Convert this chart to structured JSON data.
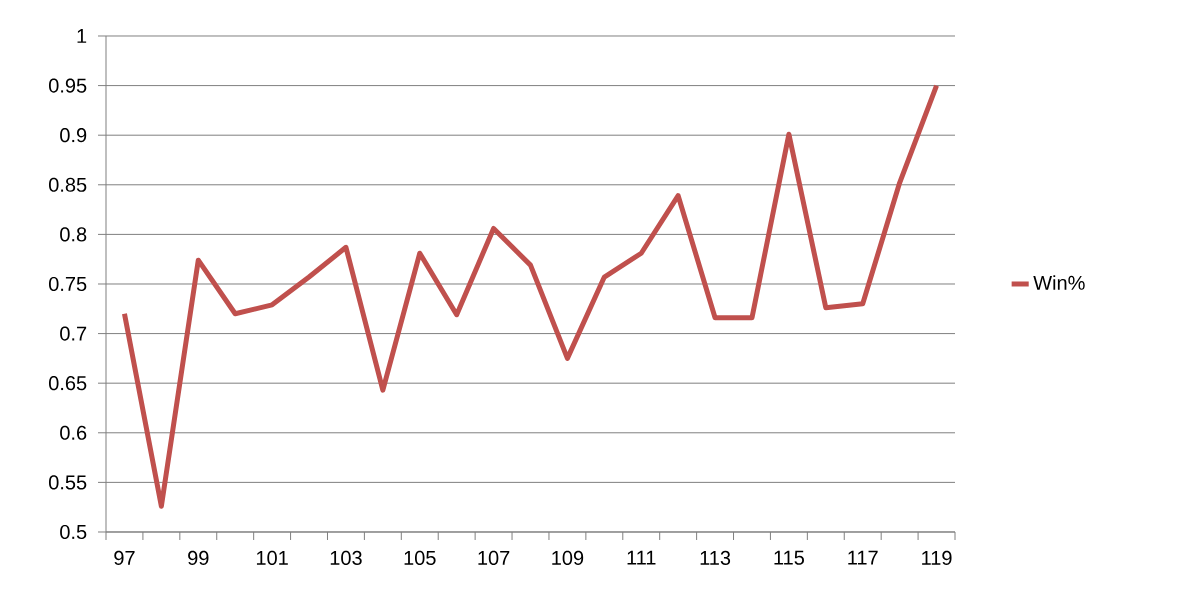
{
  "chart_data": {
    "type": "line",
    "categories": [
      "97",
      null,
      "99",
      null,
      "101",
      null,
      "103",
      null,
      "105",
      null,
      "107",
      null,
      "109",
      null,
      "111",
      null,
      "113",
      null,
      "115",
      null,
      "117",
      null,
      "119"
    ],
    "series": [
      {
        "name": "Win%",
        "color": "#c0504d",
        "values": [
          0.72,
          0.526,
          0.774,
          0.72,
          0.729,
          0.757,
          0.787,
          0.643,
          0.781,
          0.719,
          0.806,
          0.769,
          0.675,
          0.757,
          0.781,
          0.839,
          0.716,
          0.716,
          0.901,
          0.726,
          0.73,
          0.852,
          0.95
        ]
      }
    ],
    "ylim": [
      0.5,
      1
    ],
    "yticks": [
      0.5,
      0.55,
      0.6,
      0.65,
      0.7,
      0.75,
      0.8,
      0.85,
      0.9,
      0.95,
      1
    ],
    "grid": "y",
    "legend": "right",
    "line_style": "solid"
  }
}
